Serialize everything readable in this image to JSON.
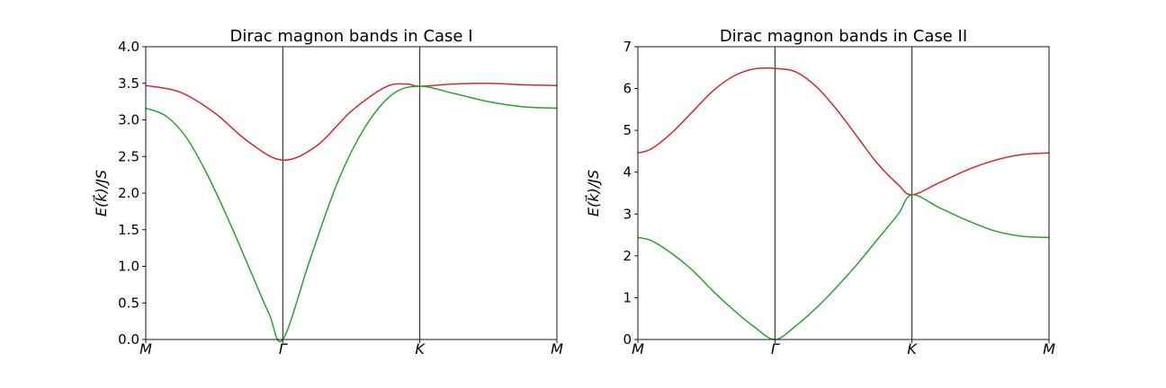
{
  "chart_data": [
    {
      "type": "line",
      "title": "Dirac magnon bands in Case I",
      "xlabel": "",
      "ylabel": "E(k⃗)/JS",
      "ylim": [
        0,
        4.0
      ],
      "yticks": [
        "0.0",
        "0.5",
        "1.0",
        "1.5",
        "2.0",
        "2.5",
        "3.0",
        "3.5",
        "4.0"
      ],
      "x_ticks": [
        "M",
        "Γ",
        "K",
        "M"
      ],
      "x_tick_positions": [
        0,
        1,
        2,
        3
      ],
      "vlines_at": [
        1,
        2
      ],
      "grid": false,
      "legend": "none",
      "series": [
        {
          "color": "#d62728",
          "x": [
            0,
            0.25,
            0.5,
            0.75,
            1,
            1.25,
            1.5,
            1.75,
            1.9,
            2,
            2.25,
            2.5,
            2.75,
            3
          ],
          "values": [
            3.47,
            3.38,
            3.1,
            2.7,
            2.45,
            2.65,
            3.12,
            3.45,
            3.49,
            3.46,
            3.49,
            3.5,
            3.48,
            3.47
          ]
        },
        {
          "color": "#2ca02c",
          "x": [
            0,
            0.15,
            0.3,
            0.45,
            0.6,
            0.75,
            0.9,
            1,
            1.2,
            1.4,
            1.6,
            1.8,
            2,
            2.25,
            2.5,
            2.75,
            3
          ],
          "values": [
            3.16,
            3.05,
            2.75,
            2.25,
            1.65,
            1.0,
            0.35,
            0.0,
            1.1,
            2.15,
            2.9,
            3.35,
            3.46,
            3.36,
            3.25,
            3.18,
            3.16
          ]
        }
      ]
    },
    {
      "type": "line",
      "title": "Dirac magnon bands in Case II",
      "xlabel": "",
      "ylabel": "E(k⃗)/JS",
      "ylim": [
        0,
        7
      ],
      "yticks": [
        "0",
        "1",
        "2",
        "3",
        "4",
        "5",
        "6",
        "7"
      ],
      "x_ticks": [
        "M",
        "Γ",
        "K",
        "M"
      ],
      "x_tick_positions": [
        0,
        1,
        2,
        3
      ],
      "vlines_at": [
        1,
        2
      ],
      "grid": false,
      "legend": "none",
      "series": [
        {
          "color": "#d62728",
          "x": [
            0,
            0.1,
            0.25,
            0.4,
            0.55,
            0.7,
            0.85,
            1,
            1.15,
            1.3,
            1.45,
            1.6,
            1.75,
            1.9,
            2,
            2.2,
            2.4,
            2.6,
            2.8,
            3
          ],
          "values": [
            4.46,
            4.56,
            4.95,
            5.45,
            5.95,
            6.3,
            6.47,
            6.48,
            6.4,
            6.05,
            5.5,
            4.85,
            4.2,
            3.7,
            3.46,
            3.75,
            4.05,
            4.28,
            4.42,
            4.46
          ]
        },
        {
          "color": "#2ca02c",
          "x": [
            0,
            0.1,
            0.25,
            0.4,
            0.55,
            0.7,
            0.85,
            1,
            1.15,
            1.3,
            1.45,
            1.6,
            1.75,
            1.9,
            2,
            2.2,
            2.4,
            2.6,
            2.8,
            3
          ],
          "values": [
            2.44,
            2.36,
            2.05,
            1.65,
            1.15,
            0.7,
            0.3,
            0.0,
            0.32,
            0.75,
            1.25,
            1.8,
            2.4,
            3.0,
            3.46,
            3.15,
            2.85,
            2.6,
            2.47,
            2.44
          ]
        }
      ]
    }
  ]
}
